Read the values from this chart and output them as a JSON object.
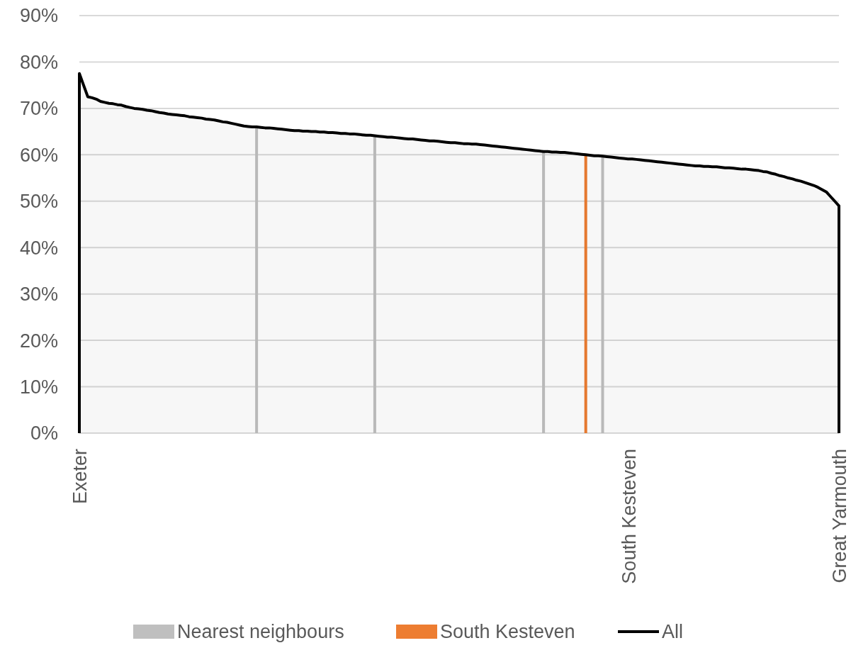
{
  "chart_data": {
    "type": "bar",
    "categories": [
      "Exeter",
      null,
      null,
      null,
      null,
      null,
      null,
      null,
      null,
      null,
      null,
      null,
      null,
      null,
      null,
      null,
      null,
      null,
      null,
      null,
      null,
      null,
      null,
      null,
      null,
      null,
      null,
      null,
      null,
      null,
      null,
      null,
      null,
      null,
      null,
      null,
      null,
      null,
      null,
      null,
      null,
      null,
      null,
      null,
      null,
      null,
      null,
      null,
      null,
      null,
      null,
      null,
      null,
      null,
      null,
      null,
      null,
      null,
      null,
      null,
      null,
      null,
      null,
      null,
      null,
      null,
      null,
      null,
      null,
      null,
      null,
      null,
      null,
      null,
      null,
      null,
      null,
      null,
      null,
      null,
      null,
      null,
      null,
      null,
      null,
      null,
      null,
      null,
      null,
      null,
      null,
      null,
      null,
      null,
      null,
      null,
      null,
      null,
      null,
      null,
      null,
      null,
      null,
      null,
      null,
      null,
      null,
      null,
      null,
      null,
      null,
      null,
      null,
      null,
      null,
      null,
      null,
      null,
      null,
      null,
      null,
      null,
      null,
      null,
      null,
      null,
      null,
      null,
      null,
      null,
      "South Kesteven",
      null,
      null,
      null,
      null,
      null,
      null,
      null,
      null,
      null,
      null,
      null,
      null,
      null,
      null,
      null,
      null,
      null,
      null,
      null,
      null,
      null,
      null,
      null,
      null,
      null,
      null,
      null,
      null,
      null,
      null,
      null,
      null,
      null,
      null,
      null,
      null,
      null,
      null,
      null,
      null,
      null,
      null,
      null,
      null,
      null,
      null,
      null,
      null,
      null,
      "Great Yarmouth"
    ],
    "series": [
      {
        "name": "Nearest neighbours",
        "color": "#bfbfbf",
        "values": [
          null,
          null,
          null,
          null,
          null,
          null,
          null,
          null,
          null,
          null,
          null,
          null,
          null,
          null,
          null,
          null,
          null,
          null,
          null,
          null,
          null,
          null,
          null,
          null,
          null,
          null,
          null,
          null,
          null,
          null,
          null,
          null,
          null,
          null,
          null,
          null,
          null,
          null,
          null,
          null,
          null,
          null,
          66.0,
          null,
          null,
          null,
          null,
          null,
          null,
          null,
          null,
          null,
          null,
          null,
          null,
          null,
          null,
          null,
          null,
          null,
          null,
          null,
          null,
          null,
          null,
          null,
          null,
          null,
          null,
          null,
          64.1,
          null,
          null,
          null,
          null,
          null,
          null,
          null,
          null,
          null,
          null,
          null,
          null,
          null,
          null,
          null,
          null,
          null,
          null,
          null,
          null,
          null,
          null,
          null,
          null,
          null,
          null,
          null,
          null,
          null,
          null,
          null,
          null,
          null,
          null,
          null,
          null,
          null,
          null,
          null,
          60.7,
          null,
          null,
          null,
          null,
          null,
          null,
          null,
          null,
          null,
          null,
          null,
          null,
          null,
          59.7,
          null,
          null,
          null,
          null,
          null,
          null,
          null,
          null,
          null,
          null,
          null,
          null,
          null,
          null,
          null,
          null,
          null,
          null,
          null,
          null,
          null,
          null,
          null,
          null,
          null,
          null,
          null,
          null,
          null,
          null,
          null,
          null,
          null,
          null,
          null,
          null,
          null,
          null,
          null,
          null,
          null,
          null,
          null,
          null,
          null,
          null,
          null,
          null,
          null,
          null,
          null,
          null,
          null,
          null,
          null,
          null
        ]
      },
      {
        "name": "South Kesteven",
        "color": "#ed7d31",
        "values": [
          null,
          null,
          null,
          null,
          null,
          null,
          null,
          null,
          null,
          null,
          null,
          null,
          null,
          null,
          null,
          null,
          null,
          null,
          null,
          null,
          null,
          null,
          null,
          null,
          null,
          null,
          null,
          null,
          null,
          null,
          null,
          null,
          null,
          null,
          null,
          null,
          null,
          null,
          null,
          null,
          null,
          null,
          null,
          null,
          null,
          null,
          null,
          null,
          null,
          null,
          null,
          null,
          null,
          null,
          null,
          null,
          null,
          null,
          null,
          null,
          null,
          null,
          null,
          null,
          null,
          null,
          null,
          null,
          null,
          null,
          null,
          null,
          null,
          null,
          null,
          null,
          null,
          null,
          null,
          null,
          null,
          null,
          null,
          null,
          null,
          null,
          null,
          null,
          null,
          null,
          null,
          null,
          null,
          null,
          null,
          null,
          null,
          null,
          null,
          null,
          null,
          null,
          null,
          null,
          null,
          null,
          null,
          null,
          null,
          null,
          null,
          null,
          null,
          null,
          null,
          null,
          null,
          null,
          null,
          null,
          60.0,
          null,
          null,
          null,
          null,
          null,
          null,
          null,
          null,
          null,
          null,
          null,
          null,
          null,
          null,
          null,
          null,
          null,
          null,
          null,
          null,
          null,
          null,
          null,
          null,
          null,
          null,
          null,
          null,
          null,
          null,
          null,
          null,
          null,
          null,
          null,
          null,
          null,
          null,
          null,
          null,
          null,
          null,
          null,
          null,
          null,
          null,
          null,
          null,
          null,
          null,
          null,
          null,
          null,
          null,
          null,
          null,
          null,
          null,
          null,
          null
        ]
      },
      {
        "name": "All",
        "type": "area",
        "color": "#000000",
        "values": [
          77.5,
          75.0,
          72.5,
          72.3,
          72.0,
          71.5,
          71.3,
          71.1,
          71.0,
          70.8,
          70.7,
          70.4,
          70.2,
          70.0,
          69.9,
          69.8,
          69.6,
          69.5,
          69.3,
          69.1,
          69.0,
          68.8,
          68.7,
          68.6,
          68.5,
          68.4,
          68.2,
          68.1,
          68.0,
          67.9,
          67.7,
          67.6,
          67.5,
          67.3,
          67.1,
          67.0,
          66.8,
          66.6,
          66.4,
          66.2,
          66.1,
          66.0,
          66.0,
          65.9,
          65.8,
          65.8,
          65.7,
          65.6,
          65.5,
          65.4,
          65.3,
          65.2,
          65.2,
          65.1,
          65.1,
          65.0,
          65.0,
          64.9,
          64.9,
          64.8,
          64.8,
          64.7,
          64.6,
          64.6,
          64.5,
          64.5,
          64.4,
          64.3,
          64.2,
          64.2,
          64.1,
          64.0,
          63.9,
          63.8,
          63.8,
          63.7,
          63.6,
          63.5,
          63.4,
          63.4,
          63.3,
          63.2,
          63.1,
          63.0,
          63.0,
          62.9,
          62.8,
          62.7,
          62.6,
          62.6,
          62.5,
          62.4,
          62.4,
          62.3,
          62.3,
          62.2,
          62.1,
          62.0,
          61.9,
          61.8,
          61.7,
          61.6,
          61.5,
          61.4,
          61.3,
          61.2,
          61.1,
          61.0,
          60.9,
          60.8,
          60.7,
          60.7,
          60.6,
          60.6,
          60.5,
          60.5,
          60.4,
          60.3,
          60.2,
          60.1,
          60.0,
          59.9,
          59.8,
          59.8,
          59.7,
          59.6,
          59.5,
          59.4,
          59.3,
          59.2,
          59.1,
          59.1,
          59.0,
          58.9,
          58.8,
          58.7,
          58.6,
          58.5,
          58.4,
          58.3,
          58.2,
          58.1,
          58.0,
          57.9,
          57.8,
          57.7,
          57.6,
          57.6,
          57.5,
          57.5,
          57.4,
          57.4,
          57.3,
          57.2,
          57.2,
          57.1,
          57.0,
          56.9,
          56.9,
          56.8,
          56.7,
          56.6,
          56.4,
          56.3,
          56.0,
          55.8,
          55.5,
          55.3,
          55.0,
          54.8,
          54.5,
          54.3,
          54.0,
          53.7,
          53.4,
          53.0,
          52.5,
          52.0,
          51.0,
          50.0,
          49.0
        ]
      }
    ],
    "ylim": [
      0,
      90
    ],
    "yticks": [
      {
        "value": 0,
        "label": "0%"
      },
      {
        "value": 10,
        "label": "10%"
      },
      {
        "value": 20,
        "label": "20%"
      },
      {
        "value": 30,
        "label": "30%"
      },
      {
        "value": 40,
        "label": "40%"
      },
      {
        "value": 50,
        "label": "50%"
      },
      {
        "value": 60,
        "label": "60%"
      },
      {
        "value": 70,
        "label": "70%"
      },
      {
        "value": 80,
        "label": "80%"
      },
      {
        "value": 90,
        "label": "90%"
      }
    ],
    "grid": "y",
    "legend": "bottom"
  }
}
